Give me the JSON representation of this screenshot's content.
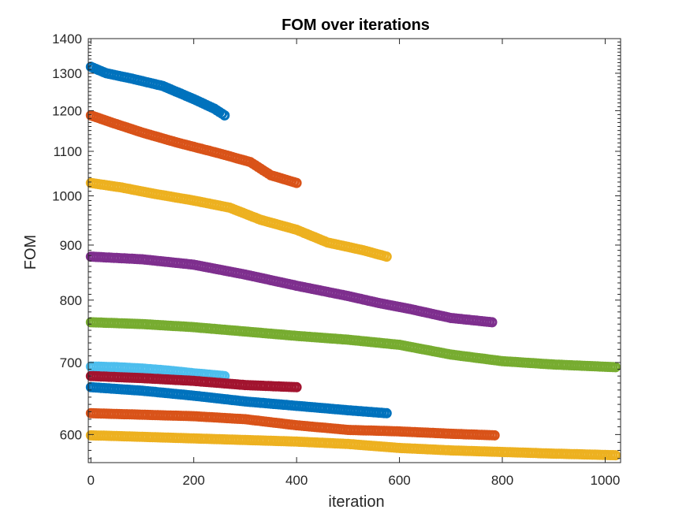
{
  "chart_data": {
    "type": "scatter",
    "title": "FOM over iterations",
    "xlabel": "iteration",
    "ylabel": "FOM",
    "xlim": [
      -5,
      1030
    ],
    "ylim": [
      565,
      1400
    ],
    "yscale": "log",
    "grid": false,
    "box": true,
    "x_ticks": [
      0,
      200,
      400,
      600,
      800,
      1000
    ],
    "x_tick_labels": [
      "0",
      "200",
      "400",
      "600",
      "800",
      "1000"
    ],
    "y_ticks": [
      600,
      700,
      800,
      900,
      1000,
      1100,
      1200,
      1300,
      1400
    ],
    "y_tick_labels": [
      "600",
      "700",
      "800",
      "900",
      "1000",
      "1100",
      "1200",
      "1300",
      "1400"
    ],
    "marker": "circle",
    "series": [
      {
        "color": "#0072BD",
        "points": [
          [
            0,
            1318
          ],
          [
            30,
            1300
          ],
          [
            80,
            1285
          ],
          [
            140,
            1265
          ],
          [
            200,
            1230
          ],
          [
            240,
            1205
          ],
          [
            260,
            1188
          ]
        ]
      },
      {
        "color": "#D95319",
        "points": [
          [
            0,
            1188
          ],
          [
            40,
            1170
          ],
          [
            100,
            1145
          ],
          [
            170,
            1120
          ],
          [
            250,
            1095
          ],
          [
            310,
            1075
          ],
          [
            350,
            1045
          ],
          [
            400,
            1028
          ]
        ]
      },
      {
        "color": "#EDB120",
        "points": [
          [
            0,
            1028
          ],
          [
            60,
            1018
          ],
          [
            120,
            1005
          ],
          [
            200,
            990
          ],
          [
            270,
            975
          ],
          [
            330,
            950
          ],
          [
            400,
            930
          ],
          [
            460,
            905
          ],
          [
            530,
            890
          ],
          [
            575,
            878
          ]
        ]
      },
      {
        "color": "#7E2F8E",
        "points": [
          [
            0,
            878
          ],
          [
            100,
            873
          ],
          [
            200,
            863
          ],
          [
            300,
            845
          ],
          [
            400,
            825
          ],
          [
            500,
            807
          ],
          [
            560,
            795
          ],
          [
            620,
            785
          ],
          [
            700,
            770
          ],
          [
            780,
            763
          ]
        ]
      },
      {
        "color": "#77AC30",
        "points": [
          [
            0,
            763
          ],
          [
            100,
            760
          ],
          [
            200,
            755
          ],
          [
            300,
            748
          ],
          [
            400,
            741
          ],
          [
            500,
            735
          ],
          [
            600,
            727
          ],
          [
            700,
            712
          ],
          [
            800,
            702
          ],
          [
            900,
            697
          ],
          [
            1020,
            693
          ]
        ]
      },
      {
        "color": "#4DBEEE",
        "points": [
          [
            0,
            694
          ],
          [
            50,
            693
          ],
          [
            100,
            691
          ],
          [
            150,
            688
          ],
          [
            200,
            684
          ],
          [
            260,
            680
          ]
        ]
      },
      {
        "color": "#A2142F",
        "points": [
          [
            0,
            680
          ],
          [
            100,
            677
          ],
          [
            200,
            673
          ],
          [
            300,
            667
          ],
          [
            400,
            664
          ]
        ]
      },
      {
        "color": "#0072BD",
        "points": [
          [
            0,
            664
          ],
          [
            100,
            659
          ],
          [
            200,
            652
          ],
          [
            300,
            644
          ],
          [
            400,
            638
          ],
          [
            500,
            632
          ],
          [
            575,
            628
          ]
        ]
      },
      {
        "color": "#D95319",
        "points": [
          [
            0,
            628
          ],
          [
            100,
            626
          ],
          [
            200,
            624
          ],
          [
            300,
            620
          ],
          [
            400,
            612
          ],
          [
            500,
            606
          ],
          [
            600,
            604
          ],
          [
            700,
            601
          ],
          [
            785,
            599
          ]
        ]
      },
      {
        "color": "#EDB120",
        "points": [
          [
            0,
            599
          ],
          [
            100,
            597
          ],
          [
            200,
            595
          ],
          [
            300,
            593
          ],
          [
            400,
            591
          ],
          [
            500,
            588
          ],
          [
            600,
            583
          ],
          [
            700,
            580
          ],
          [
            800,
            578
          ],
          [
            900,
            576
          ],
          [
            1020,
            574
          ]
        ]
      }
    ]
  }
}
